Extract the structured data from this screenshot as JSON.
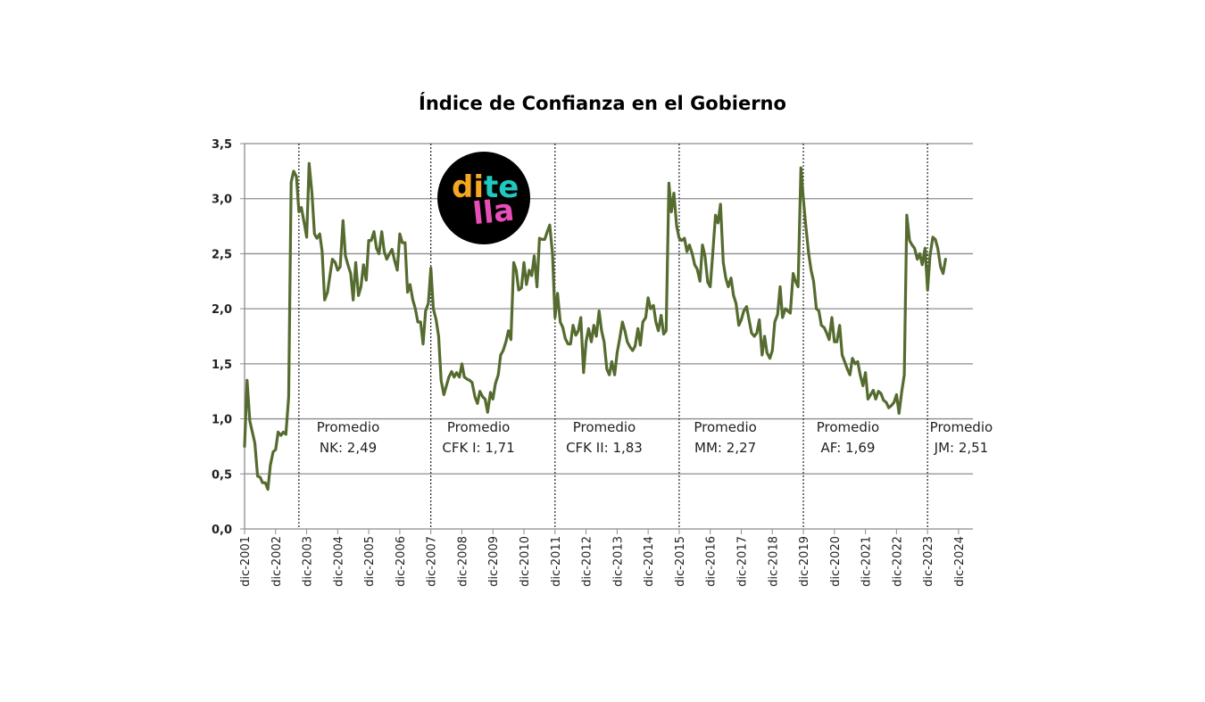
{
  "chart_data": {
    "type": "line",
    "title": "Índice de Confianza en el Gobierno",
    "xlabel": "",
    "ylabel": "",
    "ylim": [
      0,
      3.5
    ],
    "yticks": [
      "0,0",
      "0,5",
      "1,0",
      "1,5",
      "2,0",
      "2,5",
      "3,0",
      "3,5"
    ],
    "ytick_values": [
      0,
      0.5,
      1.0,
      1.5,
      2.0,
      2.5,
      3.0,
      3.5
    ],
    "xticks": [
      "dic-2001",
      "dic-2002",
      "dic-2003",
      "dic-2004",
      "dic-2005",
      "dic-2006",
      "dic-2007",
      "dic-2008",
      "dic-2009",
      "dic-2010",
      "dic-2011",
      "dic-2012",
      "dic-2013",
      "dic-2014",
      "dic-2015",
      "dic-2016",
      "dic-2017",
      "dic-2018",
      "dic-2019",
      "dic-2020",
      "dic-2021",
      "dic-2022",
      "dic-2023",
      "dic-2024"
    ],
    "grid": true,
    "legend": null,
    "line_color": "#556b2f",
    "series": [
      {
        "name": "Índice de Confianza en el Gobierno",
        "x_years_since_dic2001": [
          0.0,
          0.08,
          0.17,
          0.25,
          0.33,
          0.42,
          0.5,
          0.58,
          0.67,
          0.75,
          0.83,
          0.92,
          1.0,
          1.08,
          1.17,
          1.25,
          1.33,
          1.42,
          1.5,
          1.58,
          1.67,
          1.75,
          1.83,
          1.92,
          2.0,
          2.08,
          2.17,
          2.25,
          2.33,
          2.42,
          2.5,
          2.58,
          2.67,
          2.75,
          2.83,
          2.92,
          3.0,
          3.08,
          3.17,
          3.25,
          3.33,
          3.42,
          3.5,
          3.58,
          3.67,
          3.75,
          3.83,
          3.92,
          4.0,
          4.08,
          4.17,
          4.25,
          4.33,
          4.42,
          4.5,
          4.58,
          4.67,
          4.75,
          4.83,
          4.92,
          5.0,
          5.08,
          5.17,
          5.25,
          5.33,
          5.42,
          5.5,
          5.58,
          5.67,
          5.75,
          5.83,
          5.92,
          6.0,
          6.08,
          6.17,
          6.25,
          6.33,
          6.42,
          6.5,
          6.58,
          6.67,
          6.75,
          6.83,
          6.92,
          7.0,
          7.08,
          7.17,
          7.25,
          7.33,
          7.42,
          7.5,
          7.58,
          7.67,
          7.75,
          7.83,
          7.92,
          8.0,
          8.08,
          8.17,
          8.25,
          8.33,
          8.42,
          8.5,
          8.58,
          8.67,
          8.75,
          8.83,
          8.92,
          9.0,
          9.08,
          9.17,
          9.25,
          9.33,
          9.42,
          9.5,
          9.58,
          9.67,
          9.75,
          9.83,
          9.92,
          10.0,
          10.08,
          10.17,
          10.25,
          10.33,
          10.42,
          10.5,
          10.58,
          10.67,
          10.75,
          10.83,
          10.92,
          11.0,
          11.08,
          11.17,
          11.25,
          11.33,
          11.42,
          11.5,
          11.58,
          11.67,
          11.75,
          11.83,
          11.92,
          12.0,
          12.08,
          12.17,
          12.25,
          12.33,
          12.42,
          12.5,
          12.58,
          12.67,
          12.75,
          12.83,
          12.92,
          13.0,
          13.08,
          13.17,
          13.25,
          13.33,
          13.42,
          13.5,
          13.58,
          13.67,
          13.75,
          13.83,
          13.92,
          14.0,
          14.08,
          14.17,
          14.25,
          14.33,
          14.42,
          14.5,
          14.58,
          14.67,
          14.75,
          14.83,
          14.92,
          15.0,
          15.08,
          15.17,
          15.25,
          15.33,
          15.42,
          15.5,
          15.58,
          15.67,
          15.75,
          15.83,
          15.92,
          16.0,
          16.08,
          16.17,
          16.25,
          16.33,
          16.42,
          16.5,
          16.58,
          16.67,
          16.75,
          16.83,
          16.92,
          17.0,
          17.08,
          17.17,
          17.25,
          17.33,
          17.42,
          17.5,
          17.58,
          17.67,
          17.75,
          17.83,
          17.92,
          18.0,
          18.08,
          18.17,
          18.25,
          18.33,
          18.42,
          18.5,
          18.58,
          18.67,
          18.75,
          18.83,
          18.92,
          19.0,
          19.08,
          19.17,
          19.25,
          19.33,
          19.42,
          19.5,
          19.58,
          19.67,
          19.75,
          19.83,
          19.92,
          20.0,
          20.08,
          20.17,
          20.25,
          20.33,
          20.42,
          20.5,
          20.58,
          20.67,
          20.75,
          20.83,
          20.92,
          21.0,
          21.08,
          21.17,
          21.25,
          21.33,
          21.42,
          21.5,
          21.58,
          21.67,
          21.75,
          21.83,
          21.92,
          22.0,
          22.08,
          22.17,
          22.25,
          22.33,
          22.42,
          22.5,
          22.58,
          22.67,
          22.75,
          22.83,
          22.92,
          23.0,
          23.08,
          23.17,
          23.25,
          23.33,
          23.42
        ],
        "values": [
          0.75,
          1.35,
          0.98,
          0.88,
          0.78,
          0.48,
          0.47,
          0.42,
          0.42,
          0.36,
          0.58,
          0.7,
          0.72,
          0.88,
          0.85,
          0.88,
          0.86,
          1.2,
          3.15,
          3.25,
          3.2,
          2.88,
          2.92,
          2.78,
          2.65,
          3.32,
          3.05,
          2.68,
          2.64,
          2.68,
          2.52,
          2.08,
          2.15,
          2.3,
          2.45,
          2.42,
          2.35,
          2.38,
          2.8,
          2.48,
          2.4,
          2.32,
          2.08,
          2.42,
          2.12,
          2.2,
          2.4,
          2.26,
          2.62,
          2.62,
          2.7,
          2.55,
          2.5,
          2.7,
          2.52,
          2.45,
          2.5,
          2.54,
          2.44,
          2.35,
          2.68,
          2.6,
          2.6,
          2.15,
          2.22,
          2.08,
          2.0,
          1.88,
          1.88,
          1.68,
          1.98,
          2.05,
          2.37,
          2.0,
          1.9,
          1.75,
          1.35,
          1.22,
          1.3,
          1.38,
          1.43,
          1.38,
          1.42,
          1.38,
          1.5,
          1.38,
          1.36,
          1.35,
          1.33,
          1.2,
          1.14,
          1.25,
          1.2,
          1.18,
          1.06,
          1.24,
          1.18,
          1.32,
          1.4,
          1.58,
          1.62,
          1.7,
          1.8,
          1.72,
          2.42,
          2.35,
          2.17,
          2.19,
          2.42,
          2.22,
          2.35,
          2.3,
          2.48,
          2.2,
          2.64,
          2.63,
          2.63,
          2.7,
          2.76,
          2.5,
          1.92,
          2.14,
          1.88,
          1.83,
          1.73,
          1.68,
          1.68,
          1.85,
          1.76,
          1.8,
          1.92,
          1.42,
          1.7,
          1.82,
          1.7,
          1.85,
          1.75,
          1.98,
          1.8,
          1.7,
          1.45,
          1.4,
          1.52,
          1.4,
          1.6,
          1.72,
          1.88,
          1.8,
          1.7,
          1.65,
          1.62,
          1.66,
          1.82,
          1.67,
          1.88,
          1.92,
          2.1,
          2.0,
          2.03,
          1.88,
          1.8,
          1.94,
          1.77,
          1.8,
          3.14,
          2.88,
          3.05,
          2.75,
          2.64,
          2.62,
          2.64,
          2.52,
          2.58,
          2.5,
          2.4,
          2.36,
          2.25,
          2.58,
          2.48,
          2.24,
          2.2,
          2.5,
          2.85,
          2.78,
          2.95,
          2.42,
          2.28,
          2.2,
          2.28,
          2.12,
          2.05,
          1.85,
          1.9,
          1.98,
          2.02,
          1.9,
          1.78,
          1.75,
          1.78,
          1.9,
          1.58,
          1.75,
          1.6,
          1.55,
          1.62,
          1.88,
          1.95,
          2.2,
          1.92,
          2.0,
          1.98,
          1.96,
          2.32,
          2.25,
          2.2,
          3.28,
          3.0,
          2.75,
          2.5,
          2.35,
          2.25,
          2.0,
          1.98,
          1.85,
          1.83,
          1.78,
          1.72,
          1.92,
          1.7,
          1.7,
          1.85,
          1.58,
          1.52,
          1.45,
          1.4,
          1.55,
          1.5,
          1.52,
          1.4,
          1.3,
          1.42,
          1.18,
          1.22,
          1.26,
          1.18,
          1.25,
          1.23,
          1.17,
          1.15,
          1.1,
          1.12,
          1.15,
          1.22,
          1.05,
          1.25,
          1.4,
          2.85,
          2.62,
          2.58,
          2.55,
          2.45,
          2.5,
          2.4,
          2.55,
          2.17,
          2.48,
          2.65,
          2.63,
          2.55,
          2.38,
          2.32,
          2.45
        ]
      }
    ],
    "period_dividers_years": [
      1.75,
      6.0,
      10.0,
      14.0,
      18.0,
      22.0
    ],
    "annotations": [
      {
        "line1": "Promedio",
        "line2": "NK: 2,49",
        "x_year": 3.25
      },
      {
        "line1": "Promedio",
        "line2": "CFK I: 1,71",
        "x_year": 7.45
      },
      {
        "line1": "Promedio",
        "line2": "CFK II: 1,83",
        "x_year": 11.5
      },
      {
        "line1": "Promedio",
        "line2": "MM: 2,27",
        "x_year": 15.4
      },
      {
        "line1": "Promedio",
        "line2": "AF: 1,69",
        "x_year": 19.35
      },
      {
        "line1": "Promedio",
        "line2": "JM: 2,51",
        "x_year": 23.0
      }
    ]
  },
  "logo": {
    "line1_part1": "di",
    "line1_part2": "te",
    "line2": "lla",
    "colors": {
      "di": "#f5a623",
      "te": "#1fc8c0",
      "lla": "#e84fb6",
      "background": "#000000"
    }
  }
}
